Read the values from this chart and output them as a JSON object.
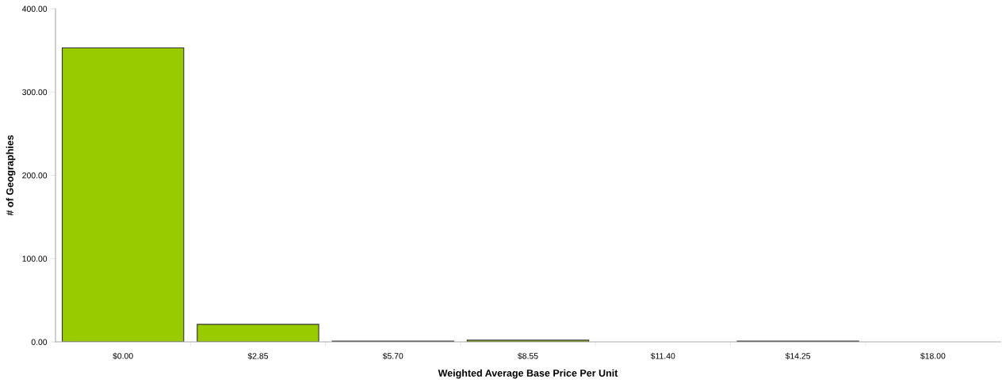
{
  "chart_data": {
    "type": "bar",
    "xlabel": "Weighted Average Base Price Per Unit",
    "ylabel": "# of Geographies",
    "categories": [
      "$0.00",
      "$2.85",
      "$5.70",
      "$8.55",
      "$11.40",
      "$14.25",
      "$18.00"
    ],
    "values": [
      353,
      21,
      1,
      2,
      0,
      1,
      0
    ],
    "color": "#99cc00",
    "ylim": [
      0,
      400
    ],
    "yticks": [
      {
        "value": 0,
        "label": "0.00"
      },
      {
        "value": 100,
        "label": "100.00"
      },
      {
        "value": 200,
        "label": "200.00"
      },
      {
        "value": 300,
        "label": "300.00"
      },
      {
        "value": 400,
        "label": "400.00"
      }
    ],
    "grid": false,
    "legend": false
  }
}
